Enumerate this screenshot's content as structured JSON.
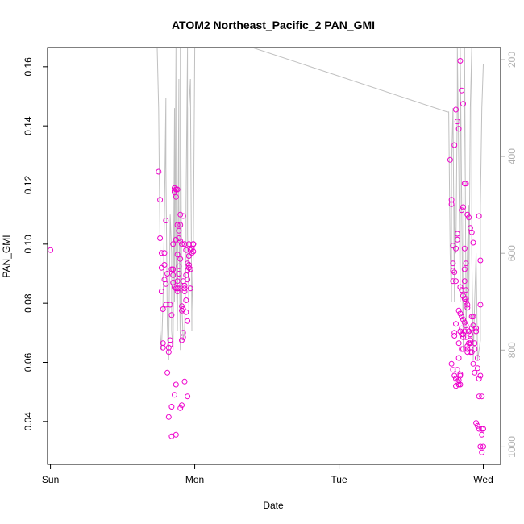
{
  "chart_data": {
    "type": "scatter",
    "title": "ATOM2 Northeast_Pacific_2 PAN_GMI",
    "xlabel": "Date",
    "ylabel": "PAN_GMI",
    "xlim": [
      -0.02,
      3.12
    ],
    "ylim": [
      0.0255,
      0.1665
    ],
    "x_ticks": [
      {
        "value": 0,
        "label": "Sun"
      },
      {
        "value": 1,
        "label": "Mon"
      },
      {
        "value": 2,
        "label": "Tue"
      },
      {
        "value": 3,
        "label": "Wed"
      }
    ],
    "y_ticks": [
      0.04,
      0.06,
      0.08,
      0.1,
      0.12,
      0.14,
      0.16
    ],
    "y2_label": "",
    "y2_lim_top_to_bottom": [
      1036,
      175
    ],
    "y2_ticks": [
      200,
      400,
      600,
      800,
      1000
    ],
    "grid": false,
    "series": [
      {
        "kind": "points",
        "color": "#ee00cc",
        "x": [
          0.0,
          0.75,
          0.76,
          0.76,
          0.77,
          0.77,
          0.77,
          0.78,
          0.78,
          0.78,
          0.79,
          0.79,
          0.79,
          0.8,
          0.8,
          0.8,
          0.81,
          0.81,
          0.82,
          0.82,
          0.82,
          0.83,
          0.83,
          0.84,
          0.84,
          0.85,
          0.85,
          0.85,
          0.86,
          0.86,
          0.86,
          0.87,
          0.87,
          0.87,
          0.87,
          0.88,
          0.88,
          0.88,
          0.88,
          0.89,
          0.89,
          0.89,
          0.89,
          0.9,
          0.9,
          0.9,
          0.91,
          0.91,
          0.91,
          0.92,
          0.92,
          0.92,
          0.93,
          0.93,
          0.93,
          0.94,
          0.94,
          0.94,
          0.95,
          0.95,
          0.95,
          0.96,
          0.96,
          0.97,
          0.97,
          0.98,
          0.98,
          0.99,
          0.99,
          0.99,
          0.99,
          0.92,
          0.93,
          0.95,
          0.84,
          0.84,
          0.87,
          0.9,
          0.91,
          0.86,
          0.87,
          0.88,
          0.89,
          0.9,
          0.91,
          0.96,
          0.96,
          0.95,
          0.94,
          0.93,
          0.92,
          0.97,
          0.83,
          0.85,
          0.86,
          0.88,
          2.77,
          2.78,
          2.78,
          2.79,
          2.79,
          2.79,
          2.8,
          2.8,
          2.81,
          2.81,
          2.81,
          2.82,
          2.82,
          2.82,
          2.83,
          2.83,
          2.83,
          2.84,
          2.84,
          2.84,
          2.85,
          2.85,
          2.85,
          2.86,
          2.86,
          2.86,
          2.87,
          2.87,
          2.87,
          2.88,
          2.88,
          2.88,
          2.89,
          2.89,
          2.89,
          2.9,
          2.9,
          2.9,
          2.91,
          2.91,
          2.91,
          2.92,
          2.92,
          2.93,
          2.93,
          2.94,
          2.94,
          2.95,
          2.95,
          2.96,
          2.96,
          2.97,
          2.97,
          2.97,
          2.98,
          2.98,
          2.98,
          2.99,
          2.99,
          2.99,
          2.8,
          2.81,
          2.82,
          2.83,
          2.84,
          2.85,
          2.86,
          2.87,
          2.88,
          2.89,
          2.9,
          2.91,
          2.92,
          2.93,
          2.79,
          2.8,
          2.81,
          2.84,
          2.85,
          2.86,
          2.87,
          2.88,
          2.89,
          2.83,
          2.84,
          2.85,
          2.86,
          2.87,
          2.88,
          2.78,
          2.79,
          2.8,
          2.81,
          2.82,
          2.83,
          2.84,
          2.85,
          2.86,
          2.87,
          2.88,
          2.89,
          2.9,
          2.91,
          2.92,
          2.93,
          2.94,
          2.95,
          2.96,
          2.97,
          2.98,
          2.99,
          3.0,
          3.0
        ],
        "y": [
          0.098,
          0.1245,
          0.115,
          0.102,
          0.097,
          0.092,
          0.084,
          0.0665,
          0.078,
          0.065,
          0.093,
          0.088,
          0.097,
          0.108,
          0.0865,
          0.0795,
          0.09,
          0.0565,
          0.0415,
          0.0635,
          0.065,
          0.0675,
          0.066,
          0.076,
          0.0915,
          0.1,
          0.0895,
          0.087,
          0.119,
          0.118,
          0.1175,
          0.1185,
          0.116,
          0.1015,
          0.085,
          0.1185,
          0.0965,
          0.0875,
          0.084,
          0.0925,
          0.102,
          0.09,
          0.085,
          0.11,
          0.1065,
          0.095,
          0.079,
          0.0775,
          0.0675,
          0.078,
          0.0685,
          0.07,
          0.1,
          0.085,
          0.084,
          0.098,
          0.081,
          0.077,
          0.074,
          0.088,
          0.091,
          0.1,
          0.092,
          0.098,
          0.085,
          0.0985,
          0.097,
          0.1,
          0.1,
          0.0975,
          0.1,
          0.1095,
          0.0535,
          0.0485,
          0.045,
          0.035,
          0.0355,
          0.0445,
          0.0455,
          0.049,
          0.0525,
          0.1065,
          0.1045,
          0.101,
          0.1,
          0.093,
          0.096,
          0.0935,
          0.0895,
          0.086,
          0.0875,
          0.0915,
          0.0795,
          0.0915,
          0.0855,
          0.085,
          0.1285,
          0.115,
          0.1135,
          0.0995,
          0.091,
          0.0875,
          0.07,
          0.069,
          0.0985,
          0.073,
          0.052,
          0.1015,
          0.1035,
          0.0575,
          0.0615,
          0.0665,
          0.054,
          0.0525,
          0.056,
          0.0705,
          0.0715,
          0.0645,
          0.1115,
          0.0645,
          0.0685,
          0.1125,
          0.0985,
          0.0915,
          0.0875,
          0.0935,
          0.0845,
          0.0815,
          0.0645,
          0.0635,
          0.0785,
          0.0705,
          0.0705,
          0.0665,
          0.0695,
          0.0675,
          0.0635,
          0.0715,
          0.0755,
          0.0755,
          0.0725,
          0.0645,
          0.0665,
          0.0705,
          0.0715,
          0.0615,
          0.058,
          0.0545,
          0.0485,
          0.1095,
          0.0795,
          0.0555,
          0.0945,
          0.0485,
          0.0375,
          0.0355,
          0.1335,
          0.1455,
          0.1415,
          0.139,
          0.162,
          0.152,
          0.1475,
          0.1205,
          0.1205,
          0.11,
          0.109,
          0.1055,
          0.104,
          0.1005,
          0.0935,
          0.0905,
          0.0875,
          0.0855,
          0.0845,
          0.0825,
          0.0815,
          0.0805,
          0.0795,
          0.0775,
          0.0765,
          0.0755,
          0.0745,
          0.0735,
          0.0725,
          0.0595,
          0.0575,
          0.0555,
          0.0545,
          0.0535,
          0.0525,
          0.0555,
          0.0695,
          0.0695,
          0.0705,
          0.0685,
          0.0655,
          0.0665,
          0.0665,
          0.0635,
          0.0595,
          0.0565,
          0.0395,
          0.0385,
          0.0375,
          0.0315,
          0.0295,
          0.0315,
          0.0375
        ]
      },
      {
        "kind": "line",
        "axis": "y2",
        "color": "#c0c0c0",
        "x": [
          0.74,
          0.75,
          0.76,
          0.76,
          0.77,
          0.78,
          0.79,
          0.8,
          0.8,
          0.81,
          0.82,
          0.82,
          0.83,
          0.84,
          0.84,
          0.85,
          0.86,
          0.86,
          0.87,
          0.87,
          0.88,
          0.89,
          0.89,
          0.9,
          0.9,
          0.91,
          0.92,
          0.93,
          0.94,
          0.94,
          0.95,
          0.95,
          0.96,
          0.96,
          0.97,
          0.98,
          0.98,
          0.99,
          1.0,
          1.0,
          1.4,
          2.75,
          2.76,
          2.77,
          2.78,
          2.78,
          2.79,
          2.8,
          2.8,
          2.81,
          2.82,
          2.82,
          2.83,
          2.84,
          2.84,
          2.85,
          2.86,
          2.86,
          2.87,
          2.88,
          2.88,
          2.89,
          2.9,
          2.9,
          2.91,
          2.92,
          2.92,
          2.93,
          2.93,
          2.94,
          2.95,
          2.96,
          2.96,
          2.97,
          2.98,
          2.98,
          2.99,
          3.0
        ],
        "y": [
          175,
          300,
          600,
          760,
          800,
          700,
          520,
          280,
          420,
          750,
          820,
          800,
          520,
          600,
          760,
          800,
          300,
          700,
          175,
          600,
          760,
          240,
          500,
          800,
          175,
          700,
          780,
          760,
          600,
          500,
          175,
          560,
          720,
          300,
          240,
          760,
          720,
          600,
          175,
          175,
          175,
          308,
          308,
          600,
          700,
          420,
          300,
          700,
          500,
          600,
          280,
          175,
          420,
          700,
          175,
          500,
          780,
          800,
          175,
          700,
          775,
          600,
          500,
          700,
          300,
          175,
          600,
          800,
          820,
          700,
          600,
          820,
          820,
          800,
          780,
          500,
          300,
          210
        ]
      }
    ]
  }
}
